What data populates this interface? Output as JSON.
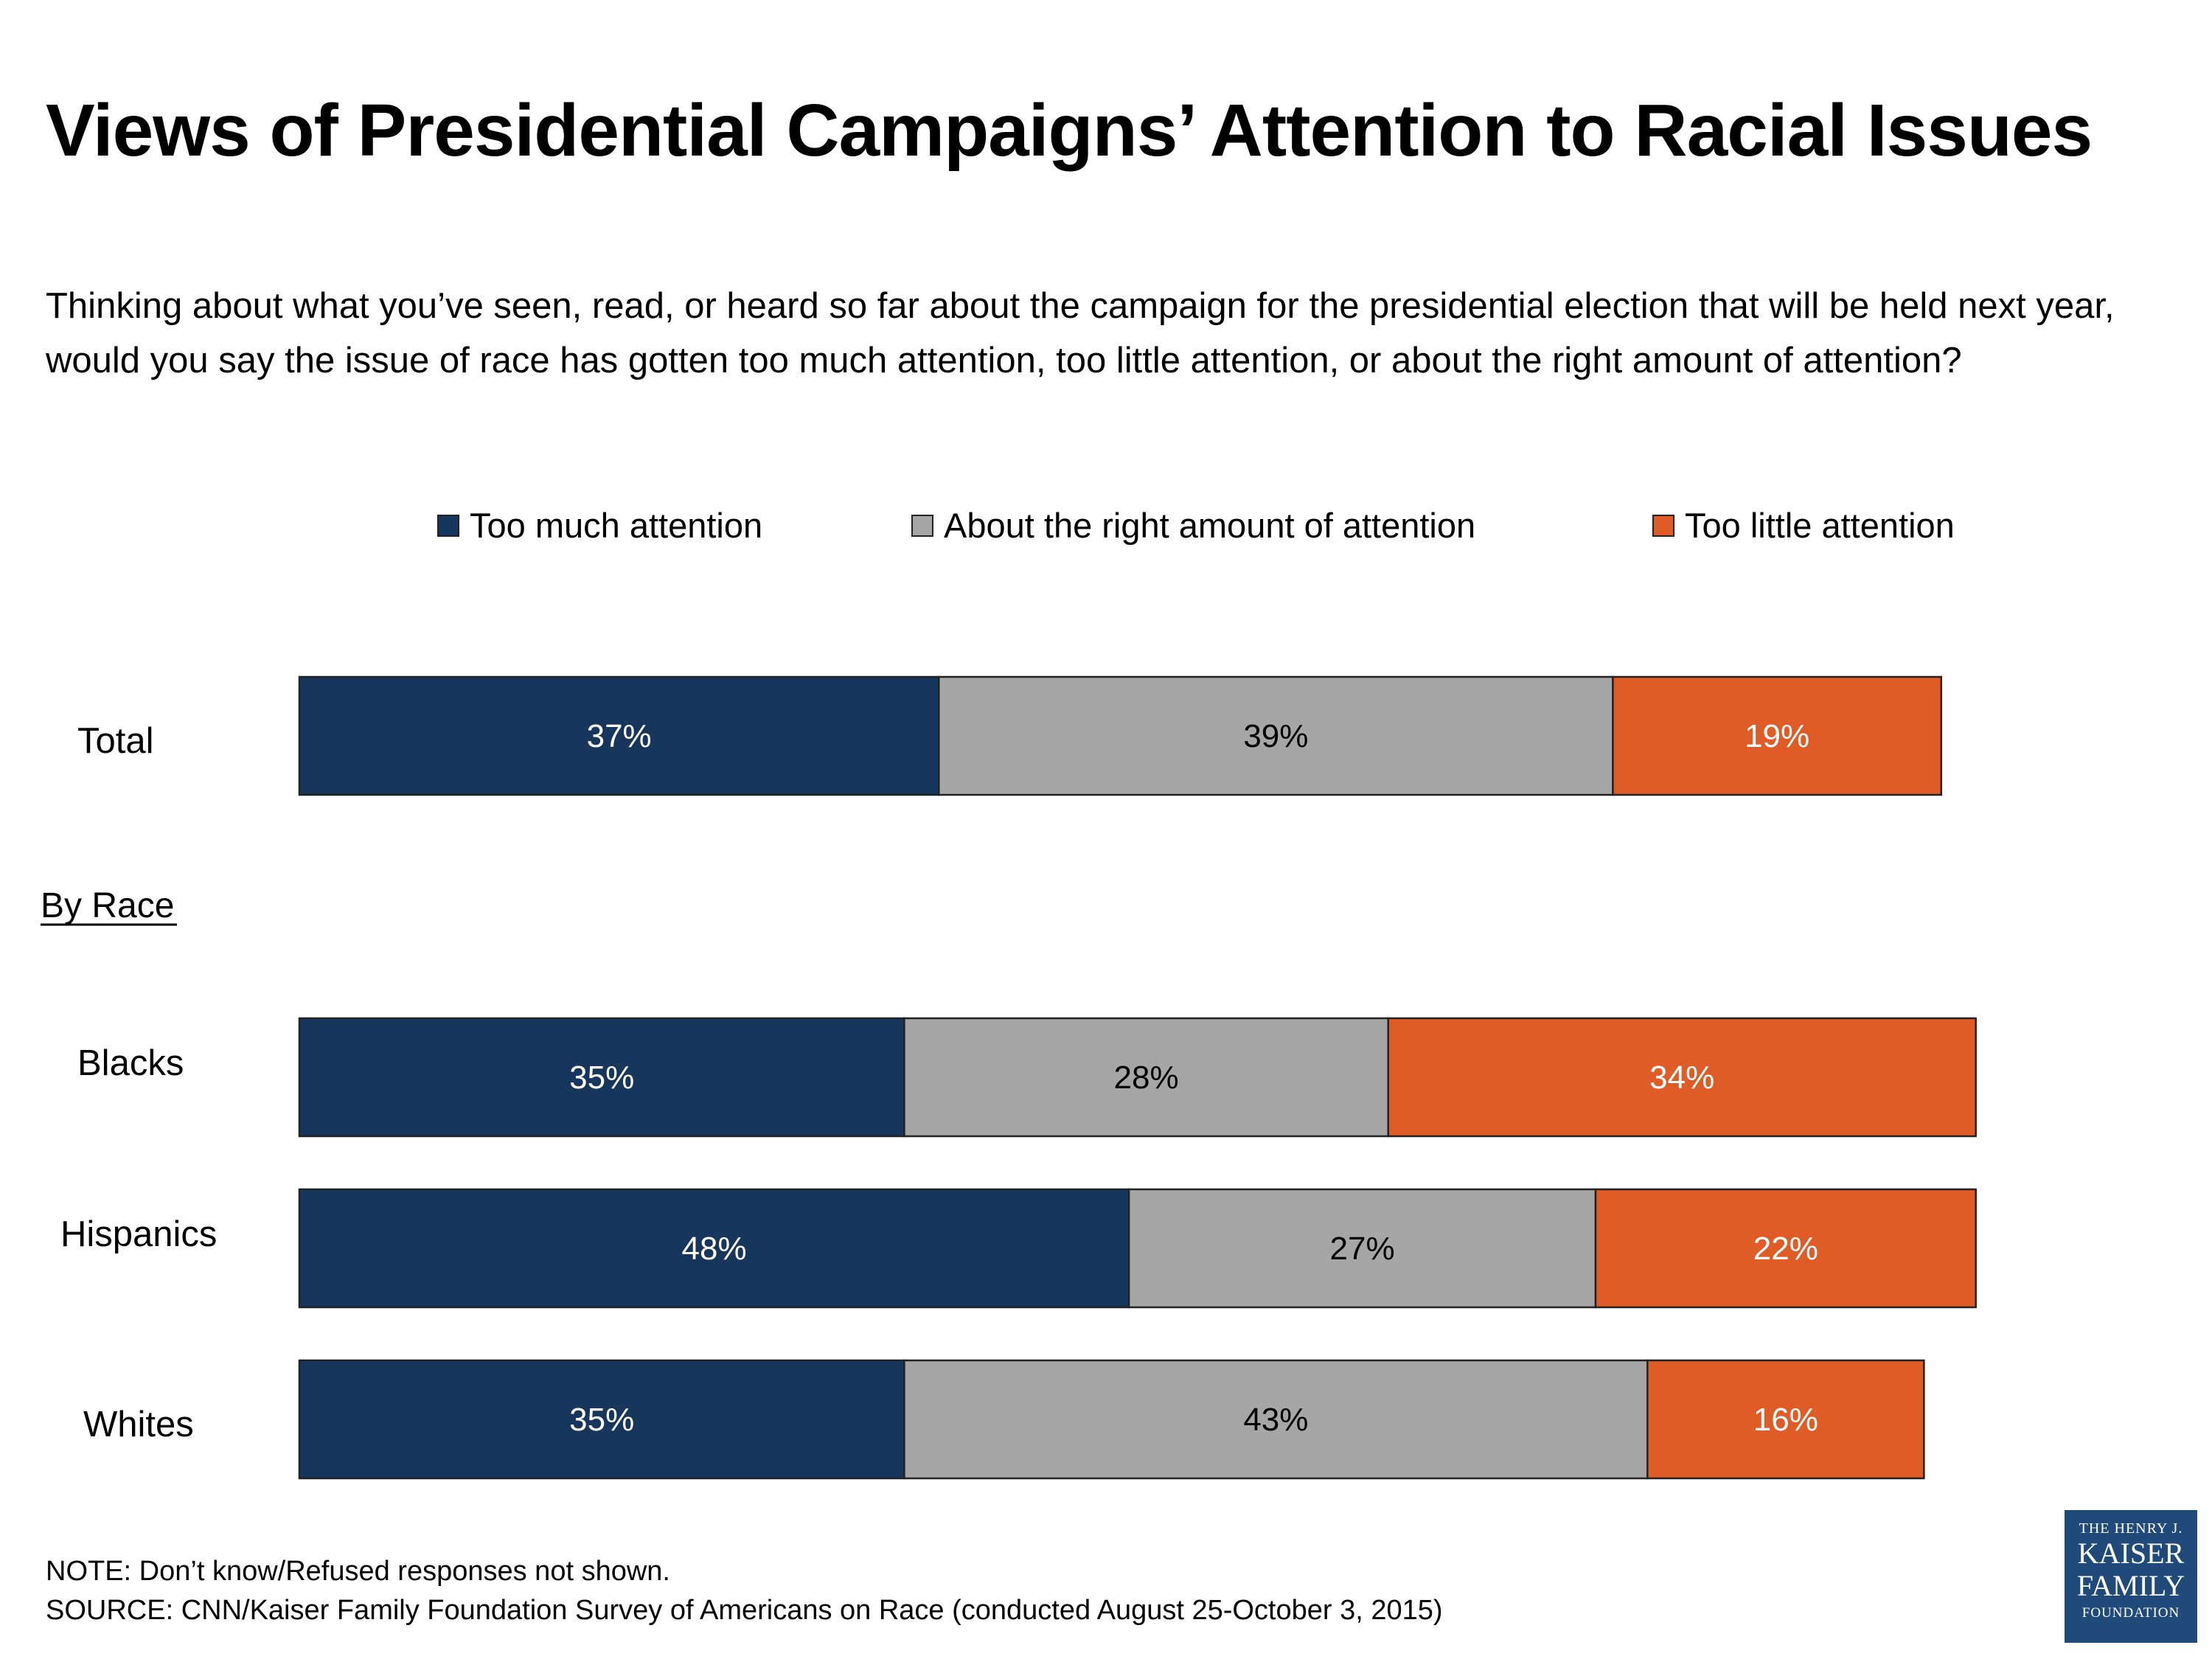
{
  "title": "Views of Presidential Campaigns’ Attention to Racial Issues",
  "question": "Thinking about what you’ve seen, read, or heard so far about the campaign for the presidential election that will be held next year, would you say the issue of race has gotten too much attention, too little attention, or about the right amount of attention?",
  "note": "NOTE: Don’t know/Refused responses not shown.",
  "source": "SOURCE: CNN/Kaiser Family Foundation Survey of Americans on Race (conducted August 25-October 3, 2015)",
  "logo": {
    "line1": "THE HENRY J.",
    "line2": "KAISER",
    "line3": "FAMILY",
    "line4": "FOUNDATION",
    "color": "#1f4a7a"
  },
  "chart_data": {
    "type": "bar",
    "orientation": "horizontal",
    "stacked": true,
    "title": "",
    "xlabel": "",
    "ylabel": "",
    "xlim": [
      0,
      100
    ],
    "grid": false,
    "legend_position": "top",
    "categories": [
      "Total",
      "Blacks",
      "Hispanics",
      "Whites"
    ],
    "section_label": "By Race",
    "series": [
      {
        "name": "Too much attention",
        "color": "#16365c",
        "label_color": "#ffffff",
        "values": [
          37,
          35,
          48,
          35
        ],
        "labels": [
          "37%",
          "35%",
          "48%",
          "35%"
        ]
      },
      {
        "name": "About the right amount of attention",
        "color": "#a6a6a6",
        "label_color": "#000000",
        "values": [
          39,
          28,
          27,
          43
        ],
        "labels": [
          "39%",
          "28%",
          "27%",
          "43%"
        ]
      },
      {
        "name": "Too little attention",
        "color": "#e05c27",
        "label_color": "#ffffff",
        "values": [
          19,
          34,
          22,
          16
        ],
        "labels": [
          "19%",
          "34%",
          "22%",
          "16%"
        ]
      }
    ]
  }
}
